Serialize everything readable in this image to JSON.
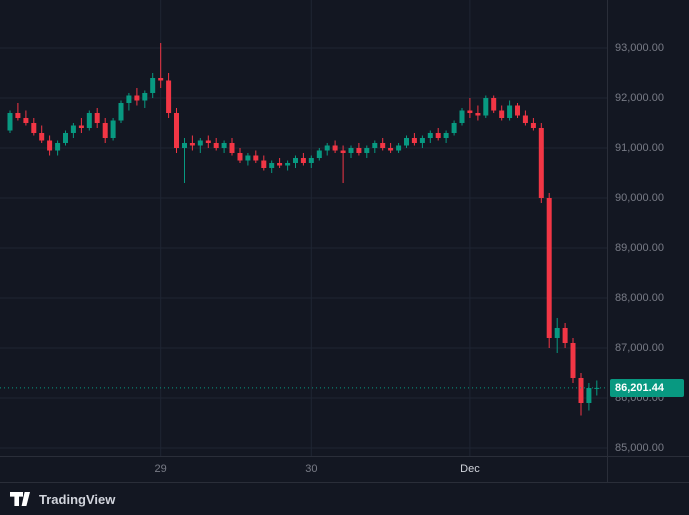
{
  "footer": {
    "brand": "TradingView"
  },
  "chart_data": {
    "type": "candlestick",
    "title": "",
    "ylim": [
      84840,
      93960
    ],
    "grid": true,
    "legend": "none",
    "y_ticks": [
      {
        "price": 93000,
        "label": "93,000.00"
      },
      {
        "price": 92000,
        "label": "92,000.00"
      },
      {
        "price": 91000,
        "label": "91,000.00"
      },
      {
        "price": 90000,
        "label": "90,000.00"
      },
      {
        "price": 89000,
        "label": "89,000.00"
      },
      {
        "price": 88000,
        "label": "88,000.00"
      },
      {
        "price": 87000,
        "label": "87,000.00"
      },
      {
        "price": 86000,
        "label": "86,000.00"
      },
      {
        "price": 85000,
        "label": "85,000.00"
      }
    ],
    "x_ticks": [
      {
        "index": 19,
        "label": "29",
        "emphasis": false
      },
      {
        "index": 38,
        "label": "30",
        "emphasis": false
      },
      {
        "index": 58,
        "label": "Dec",
        "emphasis": true
      }
    ],
    "last_price": 86201.44,
    "last_price_label": "86,201.44",
    "colors": {
      "up": "#089981",
      "down": "#f23645",
      "bg": "#131722",
      "grid": "#1f2533",
      "axis_text": "#787b86",
      "axis_border": "#2a2e39",
      "last_price_line": "#089981",
      "badge_bg": "#089981",
      "badge_text": "#ffffff"
    },
    "candles": [
      [
        91350,
        91750,
        91300,
        91700
      ],
      [
        91700,
        91900,
        91550,
        91600
      ],
      [
        91600,
        91750,
        91450,
        91500
      ],
      [
        91500,
        91600,
        91250,
        91300
      ],
      [
        91300,
        91450,
        91100,
        91150
      ],
      [
        91150,
        91250,
        90850,
        90950
      ],
      [
        90950,
        91150,
        90850,
        91100
      ],
      [
        91100,
        91350,
        91050,
        91300
      ],
      [
        91300,
        91500,
        91200,
        91450
      ],
      [
        91450,
        91600,
        91300,
        91400
      ],
      [
        91400,
        91750,
        91350,
        91700
      ],
      [
        91700,
        91800,
        91400,
        91500
      ],
      [
        91500,
        91600,
        91100,
        91200
      ],
      [
        91200,
        91600,
        91150,
        91550
      ],
      [
        91550,
        91950,
        91500,
        91900
      ],
      [
        91900,
        92100,
        91750,
        92050
      ],
      [
        92050,
        92200,
        91850,
        91950
      ],
      [
        91950,
        92150,
        91800,
        92100
      ],
      [
        92100,
        92500,
        92000,
        92400
      ],
      [
        92400,
        93100,
        92200,
        92350
      ],
      [
        92350,
        92500,
        91600,
        91700
      ],
      [
        91700,
        91800,
        90900,
        91000
      ],
      [
        91000,
        91200,
        90300,
        91100
      ],
      [
        91100,
        91250,
        90950,
        91050
      ],
      [
        91050,
        91200,
        90900,
        91150
      ],
      [
        91150,
        91250,
        91000,
        91100
      ],
      [
        91100,
        91200,
        90950,
        91000
      ],
      [
        91000,
        91150,
        90900,
        91100
      ],
      [
        91100,
        91200,
        90850,
        90900
      ],
      [
        90900,
        91000,
        90700,
        90750
      ],
      [
        90750,
        90900,
        90650,
        90850
      ],
      [
        90850,
        90950,
        90700,
        90750
      ],
      [
        90750,
        90850,
        90550,
        90600
      ],
      [
        90600,
        90750,
        90500,
        90700
      ],
      [
        90700,
        90800,
        90600,
        90650
      ],
      [
        90650,
        90750,
        90550,
        90700
      ],
      [
        90700,
        90850,
        90600,
        90800
      ],
      [
        90800,
        90900,
        90650,
        90700
      ],
      [
        90700,
        90850,
        90600,
        90800
      ],
      [
        90800,
        91000,
        90750,
        90950
      ],
      [
        90950,
        91100,
        90850,
        91050
      ],
      [
        91050,
        91150,
        90900,
        90950
      ],
      [
        90950,
        91050,
        90300,
        90900
      ],
      [
        90900,
        91050,
        90800,
        91000
      ],
      [
        91000,
        91100,
        90850,
        90900
      ],
      [
        90900,
        91050,
        90800,
        91000
      ],
      [
        91000,
        91150,
        90900,
        91100
      ],
      [
        91100,
        91200,
        90950,
        91000
      ],
      [
        91000,
        91100,
        90900,
        90950
      ],
      [
        90950,
        91100,
        90900,
        91050
      ],
      [
        91050,
        91250,
        91000,
        91200
      ],
      [
        91200,
        91300,
        91050,
        91100
      ],
      [
        91100,
        91250,
        91000,
        91200
      ],
      [
        91200,
        91350,
        91100,
        91300
      ],
      [
        91300,
        91400,
        91150,
        91200
      ],
      [
        91200,
        91350,
        91100,
        91300
      ],
      [
        91300,
        91550,
        91250,
        91500
      ],
      [
        91500,
        91800,
        91450,
        91750
      ],
      [
        91750,
        92000,
        91600,
        91700
      ],
      [
        91700,
        91850,
        91550,
        91650
      ],
      [
        91650,
        92050,
        91600,
        92000
      ],
      [
        92000,
        92050,
        91700,
        91750
      ],
      [
        91750,
        91850,
        91550,
        91600
      ],
      [
        91600,
        91950,
        91550,
        91850
      ],
      [
        91850,
        91900,
        91600,
        91650
      ],
      [
        91650,
        91750,
        91450,
        91500
      ],
      [
        91500,
        91600,
        91350,
        91400
      ],
      [
        91400,
        91500,
        89900,
        90000
      ],
      [
        90000,
        90100,
        87000,
        87200
      ],
      [
        87200,
        87600,
        86900,
        87400
      ],
      [
        87400,
        87500,
        87000,
        87100
      ],
      [
        87100,
        87200,
        86300,
        86400
      ],
      [
        86400,
        86500,
        85650,
        85900
      ],
      [
        85900,
        86300,
        85750,
        86200
      ],
      [
        86200,
        86350,
        86050,
        86201.44
      ]
    ]
  }
}
